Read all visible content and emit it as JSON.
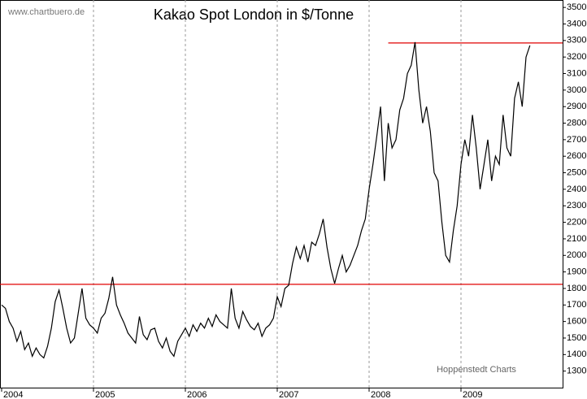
{
  "chart_data": {
    "type": "line",
    "title": "Kakao Spot London in $/Tonne",
    "source": "www.chartbuero.de",
    "credit": "Hoppenstedt Charts",
    "categories": [
      "2004",
      null,
      null,
      null,
      null,
      null,
      null,
      null,
      null,
      null,
      null,
      null,
      null,
      null,
      null,
      null,
      null,
      null,
      null,
      null,
      null,
      null,
      null,
      null,
      "2005",
      null,
      null,
      null,
      null,
      null,
      null,
      null,
      null,
      null,
      null,
      null,
      null,
      null,
      null,
      null,
      null,
      null,
      null,
      null,
      null,
      null,
      null,
      null,
      "2006",
      null,
      null,
      null,
      null,
      null,
      null,
      null,
      null,
      null,
      null,
      null,
      null,
      null,
      null,
      null,
      null,
      null,
      null,
      null,
      null,
      null,
      null,
      null,
      "2007",
      null,
      null,
      null,
      null,
      null,
      null,
      null,
      null,
      null,
      null,
      null,
      null,
      null,
      null,
      null,
      null,
      null,
      null,
      null,
      null,
      null,
      null,
      null,
      "2008",
      null,
      null,
      null,
      null,
      null,
      null,
      null,
      null,
      null,
      null,
      null,
      null,
      null,
      null,
      null,
      null,
      null,
      null,
      null,
      null,
      null,
      null,
      null,
      "2009",
      null,
      null,
      null,
      null,
      null,
      null,
      null,
      null,
      null,
      null,
      null,
      null,
      null,
      null,
      null,
      null,
      null,
      null
    ],
    "values": [
      1700,
      1680,
      1600,
      1560,
      1480,
      1540,
      1430,
      1470,
      1390,
      1440,
      1400,
      1380,
      1450,
      1560,
      1720,
      1790,
      1680,
      1560,
      1470,
      1500,
      1650,
      1800,
      1620,
      1580,
      1560,
      1530,
      1620,
      1650,
      1740,
      1870,
      1700,
      1640,
      1590,
      1530,
      1500,
      1470,
      1630,
      1520,
      1490,
      1550,
      1560,
      1480,
      1440,
      1500,
      1420,
      1390,
      1480,
      1520,
      1560,
      1510,
      1580,
      1540,
      1590,
      1560,
      1620,
      1570,
      1640,
      1600,
      1580,
      1560,
      1800,
      1620,
      1560,
      1660,
      1610,
      1570,
      1550,
      1590,
      1510,
      1560,
      1580,
      1620,
      1750,
      1690,
      1800,
      1820,
      1950,
      2050,
      1980,
      2060,
      1960,
      2080,
      2060,
      2130,
      2220,
      2050,
      1920,
      1830,
      1920,
      2000,
      1900,
      1940,
      2000,
      2060,
      2150,
      2220,
      2400,
      2550,
      2720,
      2900,
      2450,
      2800,
      2650,
      2700,
      2880,
      2950,
      3100,
      3150,
      3290,
      3000,
      2800,
      2900,
      2750,
      2500,
      2450,
      2200,
      2000,
      1960,
      2150,
      2300,
      2550,
      2700,
      2600,
      2850,
      2650,
      2400,
      2550,
      2700,
      2450,
      2600,
      2550,
      2850,
      2650,
      2600,
      2950,
      3050,
      2900,
      3200,
      3270
    ],
    "color": "#000000",
    "ylim": [
      1200,
      3545
    ],
    "yticks": [
      1300,
      1400,
      1500,
      1600,
      1700,
      1800,
      1900,
      2000,
      2100,
      2200,
      2300,
      2400,
      2500,
      2600,
      2700,
      2800,
      2900,
      3000,
      3100,
      3200,
      3300,
      3400,
      3500
    ],
    "grid": true,
    "hlines": [
      {
        "value": 1825,
        "color": "#e00000"
      },
      {
        "value": 3285,
        "color": "#e00000",
        "x_start": 101
      }
    ]
  }
}
